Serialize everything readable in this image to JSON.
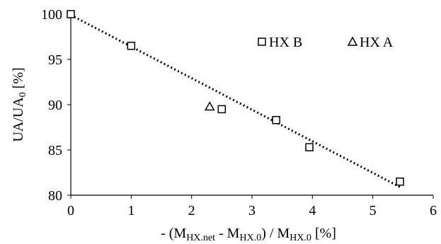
{
  "chart_data": {
    "type": "scatter",
    "xlabel": {
      "parts": [
        {
          "text": "- (M",
          "style": "normal"
        },
        {
          "text": "HX.net",
          "style": "sub"
        },
        {
          "text": " - M",
          "style": "normal"
        },
        {
          "text": "HX.0",
          "style": "sub"
        },
        {
          "text": ") / M",
          "style": "normal"
        },
        {
          "text": "HX.0",
          "style": "sub"
        },
        {
          "text": " [%]",
          "style": "normal"
        }
      ]
    },
    "ylabel": {
      "parts": [
        {
          "text": "UA/UA",
          "style": "normal"
        },
        {
          "text": "0",
          "style": "sub"
        },
        {
          "text": " [%]",
          "style": "normal"
        }
      ]
    },
    "xlim": [
      0,
      6
    ],
    "ylim": [
      80,
      100
    ],
    "xticks": [
      "0",
      "1",
      "2",
      "3",
      "4",
      "5",
      "6"
    ],
    "yticks": [
      "80",
      "85",
      "90",
      "95",
      "100"
    ],
    "grid": false,
    "legend_position": "top-right",
    "series": [
      {
        "name": "HX B",
        "marker": "square",
        "color": "#000000",
        "x": [
          0,
          1.0,
          2.5,
          3.4,
          3.95,
          5.45
        ],
        "y": [
          100,
          96.5,
          89.5,
          88.3,
          85.3,
          81.5
        ]
      },
      {
        "name": "HX A",
        "marker": "triangle",
        "color": "#000000",
        "x": [
          2.3
        ],
        "y": [
          89.8
        ]
      }
    ],
    "trendline": {
      "style": "dotted",
      "color": "#000000",
      "x": [
        0,
        5.45
      ],
      "y": [
        99.9,
        80.9
      ]
    }
  }
}
